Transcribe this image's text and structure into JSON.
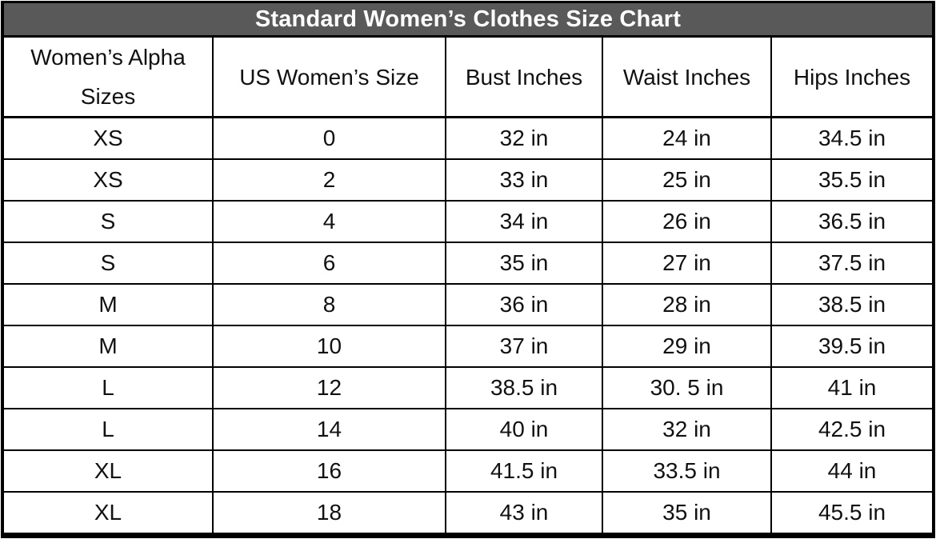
{
  "colors": {
    "title_bg": "#595959",
    "title_text": "#ffffff",
    "border": "#000000",
    "cell_text": "#111111"
  },
  "chart_data": {
    "type": "table",
    "title": "Standard Women’s Clothes Size Chart",
    "columns": [
      "Women’s Alpha Sizes",
      "US Women’s Size",
      "Bust Inches",
      "Waist Inches",
      "Hips Inches"
    ],
    "rows": [
      [
        "XS",
        "0",
        "32 in",
        "24 in",
        "34.5 in"
      ],
      [
        "XS",
        "2",
        "33 in",
        "25 in",
        "35.5 in"
      ],
      [
        "S",
        "4",
        "34 in",
        "26 in",
        "36.5 in"
      ],
      [
        "S",
        "6",
        "35 in",
        "27 in",
        "37.5 in"
      ],
      [
        "M",
        "8",
        "36 in",
        "28 in",
        "38.5 in"
      ],
      [
        "M",
        "10",
        "37 in",
        "29 in",
        "39.5 in"
      ],
      [
        "L",
        "12",
        "38.5 in",
        "30. 5 in",
        "41 in"
      ],
      [
        "L",
        "14",
        "40 in",
        "32 in",
        "42.5 in"
      ],
      [
        "XL",
        "16",
        "41.5 in",
        "33.5 in",
        "44 in"
      ],
      [
        "XL",
        "18",
        "43 in",
        "35 in",
        "45.5 in"
      ]
    ]
  }
}
